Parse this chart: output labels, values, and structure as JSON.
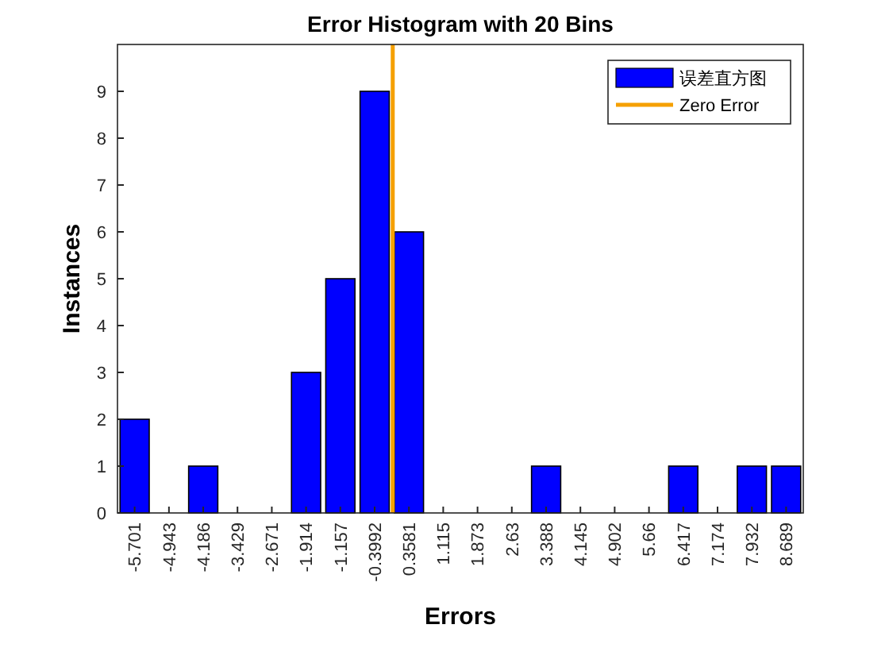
{
  "chart_data": {
    "type": "bar",
    "title": "Error Histogram with 20 Bins",
    "xlabel": "Errors",
    "ylabel": "Instances",
    "x": [
      -5.701,
      -4.943,
      -4.186,
      -3.429,
      -2.671,
      -1.914,
      -1.157,
      -0.3992,
      0.3581,
      1.115,
      1.873,
      2.63,
      3.388,
      4.145,
      4.902,
      5.66,
      6.417,
      7.174,
      7.932,
      8.689
    ],
    "series": [
      {
        "name": "误差直方图",
        "color": "#0000ff",
        "values": [
          2,
          0,
          1,
          0,
          0,
          3,
          5,
          9,
          6,
          0,
          0,
          0,
          1,
          0,
          0,
          0,
          1,
          0,
          1,
          1
        ]
      },
      {
        "name": "Zero Error",
        "type": "line",
        "color": "#f5a000",
        "x": [
          0,
          0
        ],
        "values": [
          0,
          10
        ]
      }
    ],
    "xlim": [
      -6.08,
      9.068
    ],
    "xticks": [
      -5.701,
      -4.943,
      -4.186,
      -3.429,
      -2.671,
      -1.914,
      -1.157,
      -0.3992,
      0.3581,
      1.115,
      1.873,
      2.63,
      3.388,
      4.145,
      4.902,
      5.66,
      6.417,
      7.174,
      7.932,
      8.689
    ],
    "ylim": [
      0,
      10
    ],
    "yticks": [
      0,
      1,
      2,
      3,
      4,
      5,
      6,
      7,
      8,
      9
    ],
    "legend": "top right",
    "grid": false
  }
}
